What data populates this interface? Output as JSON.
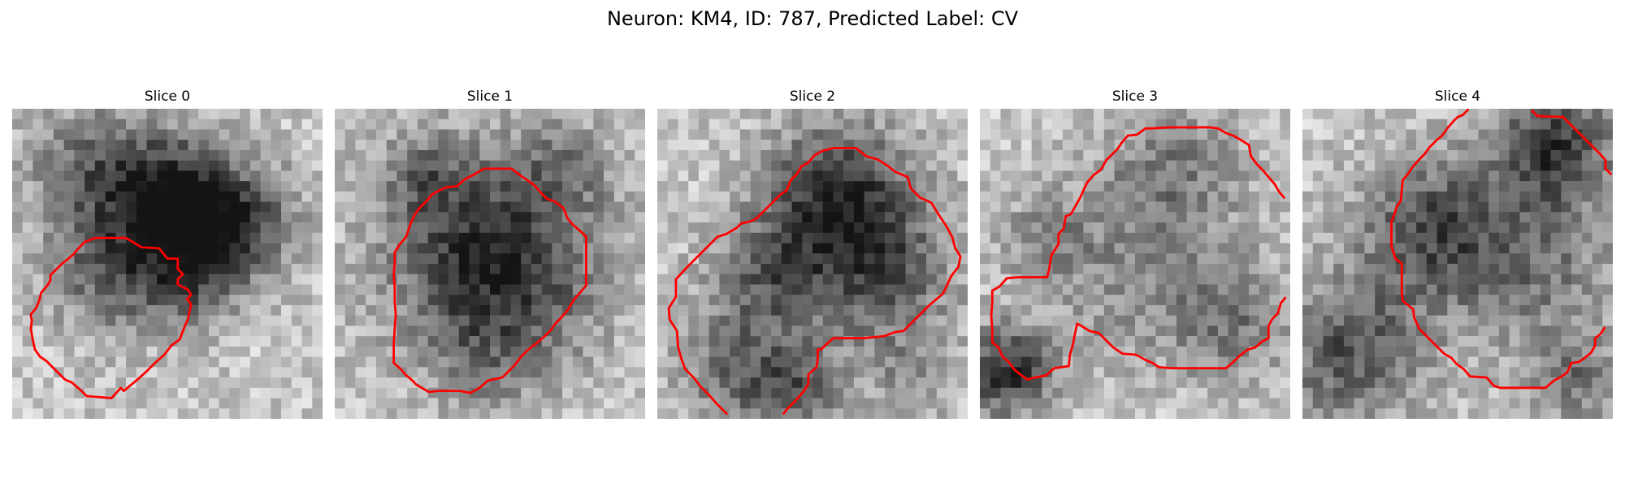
{
  "figure": {
    "title": "Neuron: KM4, ID: 787, Predicted Label: CV",
    "contour_color": "#ff0000",
    "colormap": "gray"
  },
  "panels": [
    {
      "title": "Slice 0",
      "content": "grayscale microscopy crop with red segmentation contour"
    },
    {
      "title": "Slice 1",
      "content": "grayscale microscopy crop with red segmentation contour"
    },
    {
      "title": "Slice 2",
      "content": "grayscale microscopy crop with red segmentation contour"
    },
    {
      "title": "Slice 3",
      "content": "grayscale microscopy crop with red segmentation contour"
    },
    {
      "title": "Slice 4",
      "content": "grayscale microscopy crop with red segmentation contour"
    }
  ]
}
